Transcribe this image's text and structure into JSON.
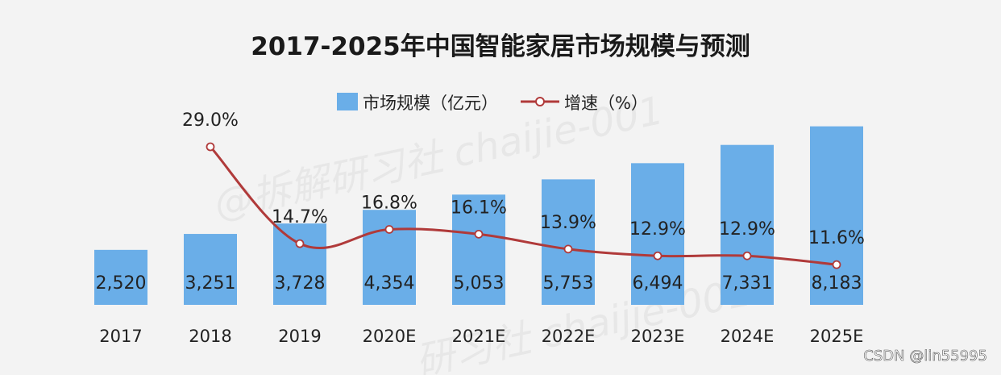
{
  "chart_data": {
    "type": "bar",
    "title": "2017-2025年中国智能家居市场规模与预测",
    "categories": [
      "2017",
      "2018",
      "2019",
      "2020E",
      "2021E",
      "2022E",
      "2023E",
      "2024E",
      "2025E"
    ],
    "series": [
      {
        "name": "市场规模（亿元）",
        "type": "bar",
        "values": [
          2520,
          3251,
          3728,
          4354,
          5053,
          5753,
          6494,
          7331,
          8183
        ],
        "value_labels": [
          "2,520",
          "3,251",
          "3,728",
          "4,354",
          "5,053",
          "5,753",
          "6,494",
          "7,331",
          "8,183"
        ],
        "color": "#6aaee8"
      },
      {
        "name": "增速（%）",
        "type": "line",
        "values": [
          null,
          29.0,
          14.7,
          16.8,
          16.1,
          13.9,
          12.9,
          12.9,
          11.6
        ],
        "value_labels": [
          "",
          "29.0%",
          "14.7%",
          "16.8%",
          "16.1%",
          "13.9%",
          "12.9%",
          "12.9%",
          "11.6%"
        ],
        "color": "#b03a3a",
        "marker_fill": "#ffffff"
      }
    ],
    "ylim_bar": [
      0,
      10000
    ],
    "ylim_line": [
      0,
      35
    ],
    "legend_position": "top",
    "grid": false
  },
  "watermarks": [
    "@拆解研习社 chaijie-001",
    "研习社 chaijie-001"
  ],
  "credit": "CSDN @lin55995"
}
